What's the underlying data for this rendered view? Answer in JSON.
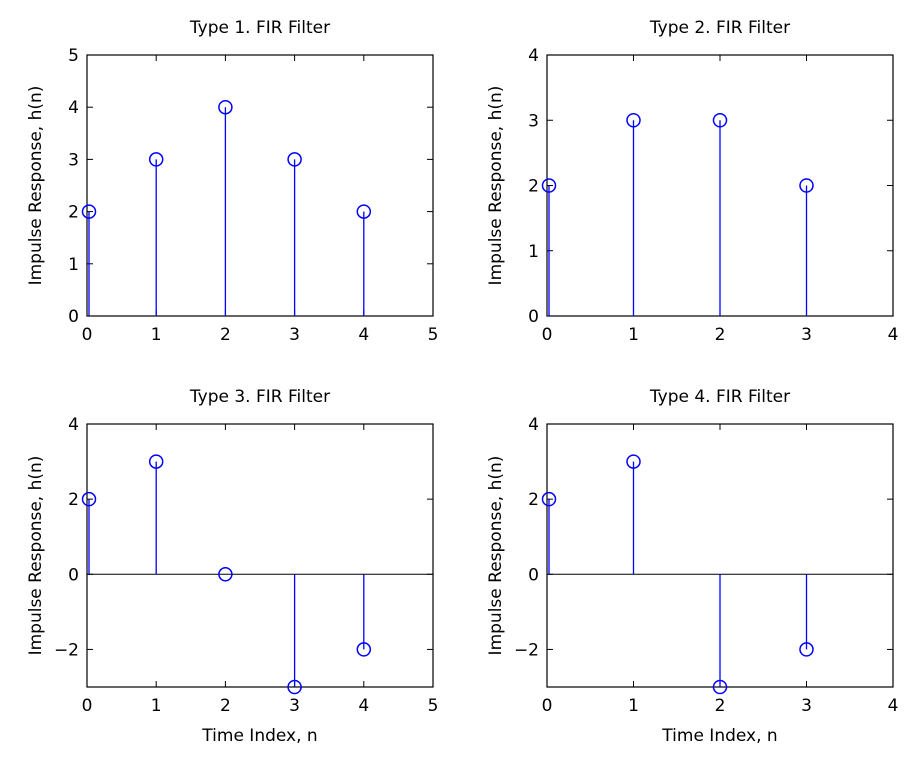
{
  "chart_data": [
    {
      "type": "stem",
      "title": "Type 1. FIR Filter",
      "ylabel": "Impulse Response,  h(n)",
      "xlabel": "",
      "x": [
        0,
        1,
        2,
        3,
        4
      ],
      "y": [
        2,
        3,
        4,
        3,
        2
      ],
      "xlim": [
        0,
        5
      ],
      "ylim": [
        0,
        5
      ],
      "xticks": [
        "0",
        "1",
        "2",
        "3",
        "4",
        "5"
      ],
      "yticks": [
        "0",
        "1",
        "2",
        "3",
        "4",
        "5"
      ],
      "grid": false,
      "color": "#0000ff"
    },
    {
      "type": "stem",
      "title": "Type 2. FIR Filter",
      "ylabel": "Impulse Response,  h(n)",
      "xlabel": "",
      "x": [
        0,
        1,
        2,
        3
      ],
      "y": [
        2,
        3,
        3,
        2
      ],
      "xlim": [
        0,
        4
      ],
      "ylim": [
        0,
        4
      ],
      "xticks": [
        "0",
        "1",
        "2",
        "3",
        "4"
      ],
      "yticks": [
        "0",
        "1",
        "2",
        "3",
        "4"
      ],
      "grid": false,
      "color": "#0000ff"
    },
    {
      "type": "stem",
      "title": "Type 3. FIR Filter",
      "ylabel": "Impulse Response,  h(n)",
      "xlabel": "Time Index, n",
      "x": [
        0,
        1,
        2,
        3,
        4
      ],
      "y": [
        2,
        3,
        0,
        -3,
        -2
      ],
      "xlim": [
        0,
        5
      ],
      "ylim": [
        -3,
        4
      ],
      "xticks": [
        "0",
        "1",
        "2",
        "3",
        "4",
        "5"
      ],
      "yticks": [
        "−2",
        "0",
        "2",
        "4"
      ],
      "grid": false,
      "color": "#0000ff"
    },
    {
      "type": "stem",
      "title": "Type 4. FIR Filter",
      "ylabel": "Impulse Response,  h(n)",
      "xlabel": "Time Index, n",
      "x": [
        0,
        1,
        2,
        3
      ],
      "y": [
        2,
        3,
        -3,
        -2
      ],
      "xlim": [
        0,
        4
      ],
      "ylim": [
        -3,
        4
      ],
      "xticks": [
        "0",
        "1",
        "2",
        "3",
        "4"
      ],
      "yticks": [
        "−2",
        "0",
        "2",
        "4"
      ],
      "grid": false,
      "color": "#0000ff"
    }
  ]
}
